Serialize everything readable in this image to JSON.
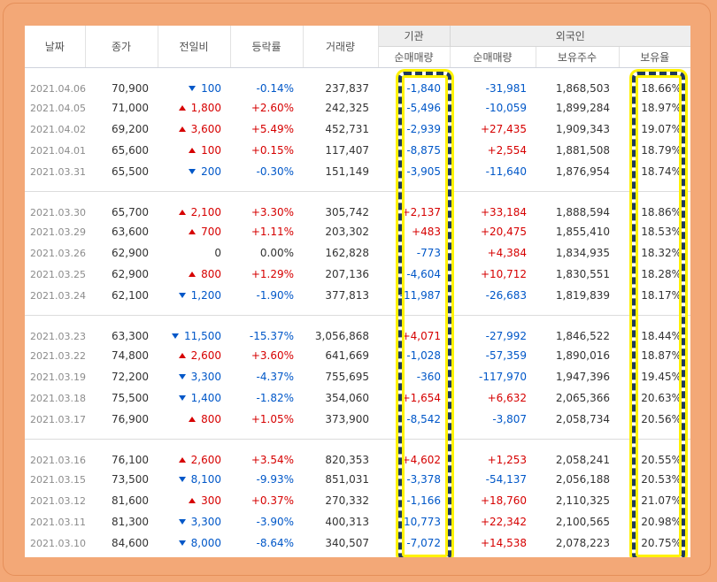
{
  "headers": {
    "date": "날짜",
    "close": "종가",
    "diff": "전일비",
    "rate": "등락률",
    "volume": "거래량",
    "institution": "기관",
    "foreign": "외국인",
    "inst_net": "순매매량",
    "foreign_net": "순매매량",
    "foreign_hold": "보유주수",
    "foreign_rate": "보유율"
  },
  "colors": {
    "up": "#d60000",
    "down": "#0057c8",
    "highlight": "#fff200"
  },
  "groups": [
    {
      "rows": [
        {
          "date": "2021.04.06",
          "close": "70,900",
          "dir": "down",
          "diff": "100",
          "rate": "-0.14%",
          "volume": "237,837",
          "inst": "-1,840",
          "fnet": "-31,981",
          "fhold": "1,868,503",
          "frate": "18.66%"
        },
        {
          "date": "2021.04.05",
          "close": "71,000",
          "dir": "up",
          "diff": "1,800",
          "rate": "+2.60%",
          "volume": "242,325",
          "inst": "-5,496",
          "fnet": "-10,059",
          "fhold": "1,899,284",
          "frate": "18.97%"
        },
        {
          "date": "2021.04.02",
          "close": "69,200",
          "dir": "up",
          "diff": "3,600",
          "rate": "+5.49%",
          "volume": "452,731",
          "inst": "-2,939",
          "fnet": "+27,435",
          "fhold": "1,909,343",
          "frate": "19.07%"
        },
        {
          "date": "2021.04.01",
          "close": "65,600",
          "dir": "up",
          "diff": "100",
          "rate": "+0.15%",
          "volume": "117,407",
          "inst": "-8,875",
          "fnet": "+2,554",
          "fhold": "1,881,508",
          "frate": "18.79%"
        },
        {
          "date": "2021.03.31",
          "close": "65,500",
          "dir": "down",
          "diff": "200",
          "rate": "-0.30%",
          "volume": "151,149",
          "inst": "-3,905",
          "fnet": "-11,640",
          "fhold": "1,876,954",
          "frate": "18.74%"
        }
      ]
    },
    {
      "rows": [
        {
          "date": "2021.03.30",
          "close": "65,700",
          "dir": "up",
          "diff": "2,100",
          "rate": "+3.30%",
          "volume": "305,742",
          "inst": "+2,137",
          "fnet": "+33,184",
          "fhold": "1,888,594",
          "frate": "18.86%"
        },
        {
          "date": "2021.03.29",
          "close": "63,600",
          "dir": "up",
          "diff": "700",
          "rate": "+1.11%",
          "volume": "203,302",
          "inst": "+483",
          "fnet": "+20,475",
          "fhold": "1,855,410",
          "frate": "18.53%"
        },
        {
          "date": "2021.03.26",
          "close": "62,900",
          "dir": "none",
          "diff": "0",
          "rate": "0.00%",
          "volume": "162,828",
          "inst": "-773",
          "fnet": "+4,384",
          "fhold": "1,834,935",
          "frate": "18.32%"
        },
        {
          "date": "2021.03.25",
          "close": "62,900",
          "dir": "up",
          "diff": "800",
          "rate": "+1.29%",
          "volume": "207,136",
          "inst": "-4,604",
          "fnet": "+10,712",
          "fhold": "1,830,551",
          "frate": "18.28%"
        },
        {
          "date": "2021.03.24",
          "close": "62,100",
          "dir": "down",
          "diff": "1,200",
          "rate": "-1.90%",
          "volume": "377,813",
          "inst": "-11,987",
          "fnet": "-26,683",
          "fhold": "1,819,839",
          "frate": "18.17%"
        }
      ]
    },
    {
      "rows": [
        {
          "date": "2021.03.23",
          "close": "63,300",
          "dir": "down",
          "diff": "11,500",
          "rate": "-15.37%",
          "volume": "3,056,868",
          "inst": "+4,071",
          "fnet": "-27,992",
          "fhold": "1,846,522",
          "frate": "18.44%"
        },
        {
          "date": "2021.03.22",
          "close": "74,800",
          "dir": "up",
          "diff": "2,600",
          "rate": "+3.60%",
          "volume": "641,669",
          "inst": "-1,028",
          "fnet": "-57,359",
          "fhold": "1,890,016",
          "frate": "18.87%"
        },
        {
          "date": "2021.03.19",
          "close": "72,200",
          "dir": "down",
          "diff": "3,300",
          "rate": "-4.37%",
          "volume": "755,695",
          "inst": "-360",
          "fnet": "-117,970",
          "fhold": "1,947,396",
          "frate": "19.45%"
        },
        {
          "date": "2021.03.18",
          "close": "75,500",
          "dir": "down",
          "diff": "1,400",
          "rate": "-1.82%",
          "volume": "354,060",
          "inst": "+1,654",
          "fnet": "+6,632",
          "fhold": "2,065,366",
          "frate": "20.63%"
        },
        {
          "date": "2021.03.17",
          "close": "76,900",
          "dir": "up",
          "diff": "800",
          "rate": "+1.05%",
          "volume": "373,900",
          "inst": "-8,542",
          "fnet": "-3,807",
          "fhold": "2,058,734",
          "frate": "20.56%"
        }
      ]
    },
    {
      "rows": [
        {
          "date": "2021.03.16",
          "close": "76,100",
          "dir": "up",
          "diff": "2,600",
          "rate": "+3.54%",
          "volume": "820,353",
          "inst": "+4,602",
          "fnet": "+1,253",
          "fhold": "2,058,241",
          "frate": "20.55%"
        },
        {
          "date": "2021.03.15",
          "close": "73,500",
          "dir": "down",
          "diff": "8,100",
          "rate": "-9.93%",
          "volume": "851,031",
          "inst": "-3,378",
          "fnet": "-54,137",
          "fhold": "2,056,188",
          "frate": "20.53%"
        },
        {
          "date": "2021.03.12",
          "close": "81,600",
          "dir": "up",
          "diff": "300",
          "rate": "+0.37%",
          "volume": "270,332",
          "inst": "-1,166",
          "fnet": "+18,760",
          "fhold": "2,110,325",
          "frate": "21.07%"
        },
        {
          "date": "2021.03.11",
          "close": "81,300",
          "dir": "down",
          "diff": "3,300",
          "rate": "-3.90%",
          "volume": "400,313",
          "inst": "-10,773",
          "fnet": "+22,342",
          "fhold": "2,100,565",
          "frate": "20.98%"
        },
        {
          "date": "2021.03.10",
          "close": "84,600",
          "dir": "down",
          "diff": "8,000",
          "rate": "-8.64%",
          "volume": "340,507",
          "inst": "-7,072",
          "fnet": "+14,538",
          "fhold": "2,078,223",
          "frate": "20.75%"
        }
      ]
    }
  ]
}
